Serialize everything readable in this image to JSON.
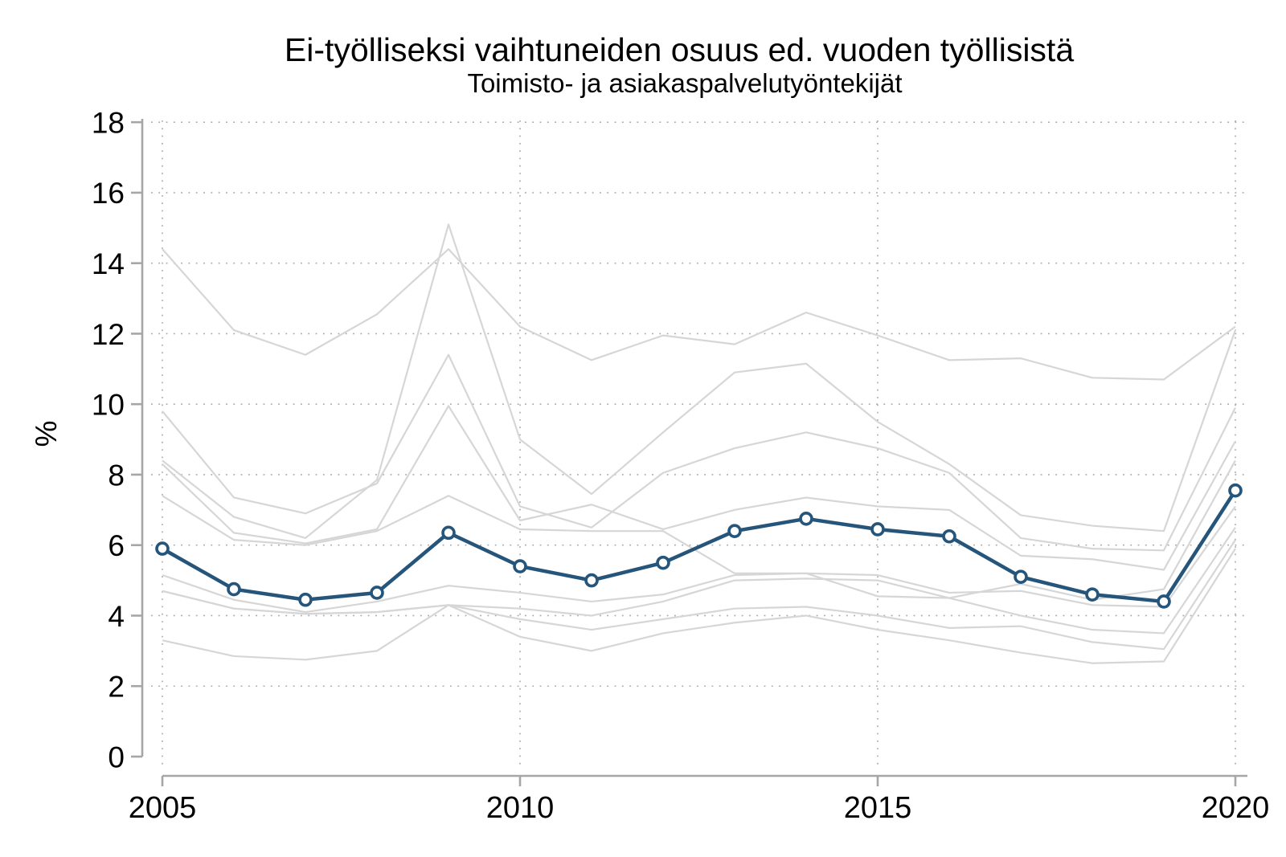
{
  "chart_data": {
    "type": "line",
    "title": "Ei-työlliseksi vaihtuneiden osuus ed. vuoden työllisistä",
    "subtitle": "Toimisto- ja asiakaspalvelutyöntekijät",
    "ylabel": "%",
    "x": [
      2005,
      2006,
      2007,
      2008,
      2009,
      2010,
      2011,
      2012,
      2013,
      2014,
      2015,
      2016,
      2017,
      2018,
      2019,
      2020
    ],
    "x_tick_labels": [
      "2005",
      "2010",
      "2015",
      "2020"
    ],
    "x_ticks": [
      2005,
      2010,
      2015,
      2020
    ],
    "y_ticks": [
      0,
      2,
      4,
      6,
      8,
      10,
      12,
      14,
      16,
      18
    ],
    "xlim": [
      2005,
      2020
    ],
    "ylim": [
      0,
      18
    ],
    "grid": "dotted",
    "legend": "none",
    "colors": {
      "highlight": "#25557a",
      "background_lines": "#d6d6d6",
      "axis": "#a6a6a6",
      "grid": "#a9a9a9",
      "marker_fill": "#ffffff"
    },
    "highlight_series": {
      "name": "Toimisto- ja asiakaspalvelutyöntekijät",
      "marker": "open-circle",
      "values": [
        5.9,
        4.75,
        4.45,
        4.65,
        6.35,
        5.4,
        5.0,
        5.5,
        6.4,
        6.75,
        6.45,
        6.25,
        5.1,
        4.6,
        4.4,
        7.55
      ]
    },
    "background_series": [
      {
        "name": "gray-line-1",
        "values": [
          14.4,
          12.1,
          11.4,
          12.55,
          14.4,
          12.2,
          11.25,
          11.95,
          11.7,
          12.6,
          11.95,
          11.25,
          11.3,
          10.75,
          10.7,
          12.2
        ]
      },
      {
        "name": "gray-line-2",
        "values": [
          8.4,
          6.8,
          6.2,
          7.85,
          15.1,
          9.0,
          7.45,
          9.2,
          10.9,
          11.15,
          9.5,
          8.3,
          6.85,
          6.55,
          6.4,
          12.1
        ]
      },
      {
        "name": "gray-line-3",
        "values": [
          9.8,
          7.35,
          6.9,
          7.75,
          11.4,
          7.1,
          6.5,
          8.05,
          8.75,
          9.2,
          8.75,
          8.05,
          6.2,
          5.9,
          5.85,
          9.9
        ]
      },
      {
        "name": "gray-line-4",
        "values": [
          8.3,
          6.35,
          6.05,
          6.45,
          9.95,
          6.7,
          7.15,
          6.45,
          7.0,
          7.35,
          7.1,
          7.0,
          5.7,
          5.6,
          5.3,
          8.95
        ]
      },
      {
        "name": "gray-line-5",
        "values": [
          7.4,
          6.15,
          6.0,
          6.4,
          7.4,
          6.45,
          6.4,
          6.4,
          5.2,
          5.2,
          4.55,
          4.5,
          4.9,
          4.45,
          4.75,
          8.4
        ]
      },
      {
        "name": "gray-line-6",
        "values": [
          5.15,
          4.45,
          4.1,
          4.4,
          4.85,
          4.65,
          4.4,
          4.6,
          5.15,
          5.2,
          5.15,
          4.65,
          4.7,
          4.3,
          4.25,
          7.1
        ]
      },
      {
        "name": "gray-line-7",
        "values": [
          4.7,
          4.2,
          4.05,
          4.1,
          4.3,
          4.2,
          4.0,
          4.4,
          5.0,
          5.05,
          5.0,
          4.5,
          4.0,
          3.6,
          3.5,
          6.5
        ]
      },
      {
        "name": "gray-line-8",
        "values": [
          4.7,
          4.2,
          4.05,
          4.1,
          4.3,
          3.9,
          3.6,
          3.9,
          4.2,
          4.25,
          4.0,
          3.65,
          3.7,
          3.25,
          3.05,
          6.15
        ]
      },
      {
        "name": "gray-line-9",
        "values": [
          3.3,
          2.85,
          2.75,
          3.0,
          4.3,
          3.4,
          3.0,
          3.5,
          3.8,
          4.0,
          3.6,
          3.3,
          2.95,
          2.65,
          2.7,
          5.9
        ]
      }
    ]
  }
}
